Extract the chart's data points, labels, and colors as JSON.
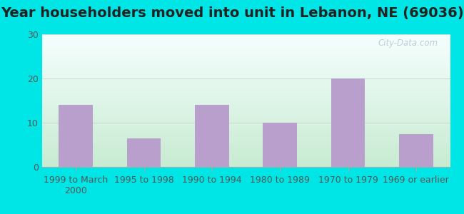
{
  "title": "Year householders moved into unit in Lebanon, NE (69036)",
  "categories": [
    "1999 to March\n2000",
    "1995 to 1998",
    "1990 to 1994",
    "1980 to 1989",
    "1970 to 1979",
    "1969 or earlier"
  ],
  "values": [
    14,
    6.5,
    14,
    10,
    20,
    7.5
  ],
  "bar_color": "#b9a0cc",
  "ylim": [
    0,
    30
  ],
  "yticks": [
    0,
    10,
    20,
    30
  ],
  "background_outer": "#00e5e5",
  "grad_top": "#e0f0e8",
  "grad_bottom": "#c8ecd8",
  "grad_white": "#f5fffe",
  "title_fontsize": 14,
  "tick_fontsize": 9,
  "watermark": "City-Data.com"
}
